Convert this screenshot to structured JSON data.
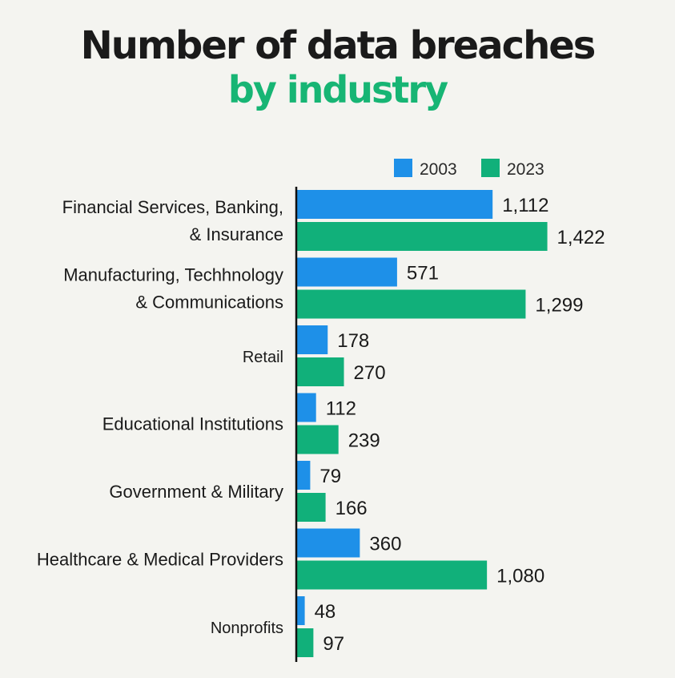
{
  "colors": {
    "series_2003": "#1e90e8",
    "series_2023": "#11b07a",
    "title": "#1a1a1a",
    "subtitle": "#17b574"
  },
  "chart_data": {
    "type": "bar",
    "orientation": "horizontal",
    "title": "Number of data breaches",
    "subtitle": "by industry",
    "legend_position": "top-right",
    "grid": false,
    "xlim": [
      0,
      1500
    ],
    "categories": [
      {
        "lines": [
          "Financial Services, Banking,",
          "& Insurance"
        ]
      },
      {
        "lines": [
          "Manufacturing, Techhnology",
          "& Communications"
        ]
      },
      {
        "lines": [
          "Retail"
        ]
      },
      {
        "lines": [
          "Educational Institutions"
        ]
      },
      {
        "lines": [
          "Government & Military"
        ]
      },
      {
        "lines": [
          "Healthcare & Medical Providers"
        ]
      },
      {
        "lines": [
          "Nonprofits"
        ]
      }
    ],
    "series": [
      {
        "name": "2003",
        "values": [
          1112,
          571,
          178,
          112,
          79,
          360,
          48
        ],
        "labels": [
          "1,112",
          "571",
          "178",
          "112",
          "79",
          "360",
          "48"
        ]
      },
      {
        "name": "2023",
        "values": [
          1422,
          1299,
          270,
          239,
          166,
          1080,
          97
        ],
        "labels": [
          "1,422",
          "1,299",
          "270",
          "239",
          "166",
          "1,080",
          "97"
        ]
      }
    ]
  }
}
